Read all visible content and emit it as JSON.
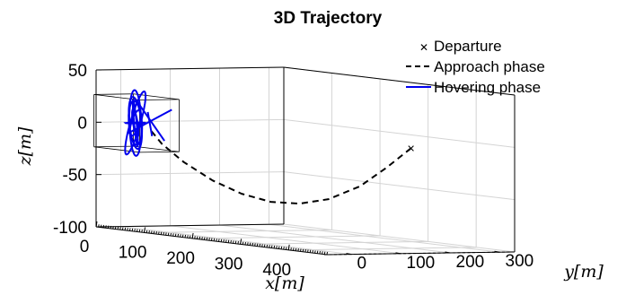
{
  "chart_data": {
    "type": "line",
    "title": "3D Trajectory",
    "xlabel": "x[m]",
    "ylabel": "y[m]",
    "zlabel": "z[m]",
    "x_ticks": [
      "0",
      "100",
      "200",
      "300",
      "400"
    ],
    "y_ticks": [
      "0",
      "100",
      "200",
      "300"
    ],
    "z_ticks": [
      "50",
      "0",
      "-50",
      "-100"
    ],
    "xlim": [
      0,
      480
    ],
    "ylim": [
      -50,
      330
    ],
    "zlim": [
      -100,
      50
    ],
    "grid": true,
    "legend_position": "top-right",
    "legend": [
      {
        "label": "Departure",
        "marker": "x",
        "color": "#000000"
      },
      {
        "label": "Approach phase",
        "style": "dashed",
        "color": "#000000"
      },
      {
        "label": "Hovering phase",
        "style": "solid",
        "color": "#0000ee"
      }
    ],
    "departure_point": {
      "x": 470,
      "y": 130,
      "z": 0
    },
    "approach_phase": {
      "x": [
        470,
        440,
        400,
        350,
        300,
        250,
        200,
        150,
        100,
        60,
        40
      ],
      "y": [
        130,
        110,
        95,
        80,
        70,
        60,
        50,
        40,
        30,
        25,
        20
      ],
      "z": [
        0,
        -20,
        -40,
        -55,
        -62,
        -63,
        -58,
        -48,
        -33,
        -18,
        -5
      ]
    },
    "hovering_phase": {
      "center": {
        "x": 20,
        "y": 10,
        "z": 0
      },
      "radius_range": [
        10,
        30
      ]
    },
    "hover_box": {
      "x": [
        -25,
        70
      ],
      "y": [
        -30,
        50
      ],
      "z": [
        -25,
        25
      ]
    }
  }
}
